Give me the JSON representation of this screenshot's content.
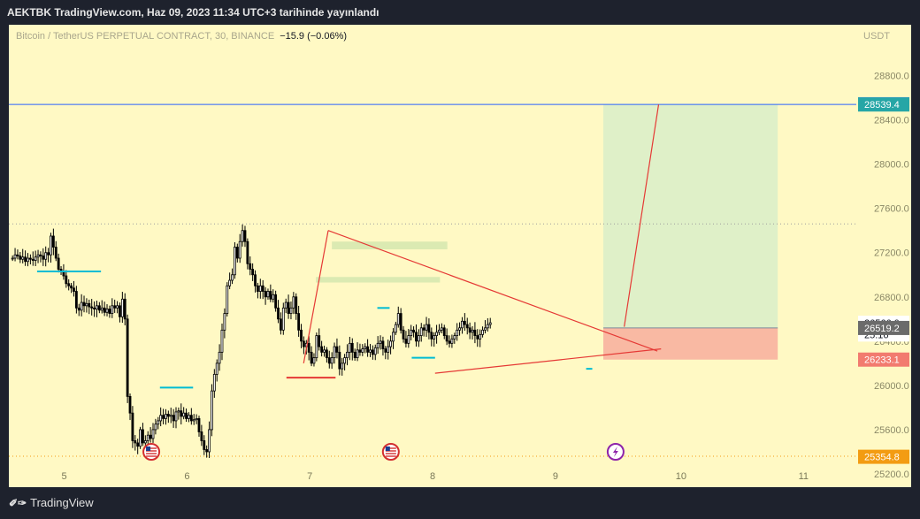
{
  "header": {
    "publish_note": "AEKTBK TradingView.com, Haz 09, 2023 11:34 UTC+3 tarihinde yayınlandı"
  },
  "legend": {
    "symbol": "Bitcoin / TetherUS PERPETUAL CONTRACT, 30, BINANCE",
    "change": "−15.9 (−0.06%)",
    "currency": "USDT"
  },
  "footer": {
    "brand": "TradingView"
  },
  "colors": {
    "background": "#fff9c4",
    "profit_zone": "#dff0c8",
    "loss_zone": "#f9b9a3",
    "pattern_line": "#e53935"
  },
  "chart_data": {
    "type": "candlestick",
    "x_ticks": [
      "5",
      "6",
      "7",
      "8",
      "9",
      "10",
      "11"
    ],
    "y_ticks": [
      25200.0,
      25600.0,
      26000.0,
      26400.0,
      26800.0,
      27200.0,
      27600.0,
      28000.0,
      28400.0,
      28800.0
    ],
    "y_tick_labels": [
      "25200.0",
      "25600.0",
      "26000.0",
      "26400.0",
      "26800.0",
      "27200.0",
      "27600.0",
      "28000.0",
      "28400.0",
      "28800.0"
    ],
    "ylim": [
      25080,
      29260
    ],
    "x_range": [
      4.55,
      11.5
    ],
    "price_labels": [
      {
        "text": "28541.2",
        "value": 28541.2,
        "color": "#2962ff"
      },
      {
        "text": "28539.4",
        "value": 28539.4,
        "color": "#26a6a6"
      },
      {
        "text": "26566.0",
        "value": 26566.0,
        "color": "#ffffff"
      },
      {
        "text": "25:16",
        "value": 26460.0,
        "color": "#ffffff"
      },
      {
        "text": "26519.2",
        "value": 26519.2,
        "color": "#6b6b6b"
      },
      {
        "text": "26233.1",
        "value": 26233.1,
        "color": "#f27b6f"
      },
      {
        "text": "25354.8",
        "value": 25354.8,
        "color": "#f39c12"
      }
    ],
    "horizontal_levels": [
      {
        "value": 28539.4,
        "style": "solid",
        "color": "#2962ff"
      },
      {
        "value": 27460,
        "style": "dotted",
        "color": "#9e9e9e"
      },
      {
        "value": 25360,
        "style": "dotted",
        "color": "#f39c12"
      }
    ],
    "candles": {
      "start_day": 4.58,
      "step": 0.0208,
      "closes": [
        27150,
        27180,
        27170,
        27140,
        27160,
        27120,
        27150,
        27140,
        27130,
        27160,
        27180,
        27170,
        27140,
        27200,
        27180,
        27350,
        27250,
        27150,
        27050,
        27030,
        26990,
        26920,
        26900,
        26880,
        26850,
        26700,
        26680,
        26750,
        26720,
        26740,
        26710,
        26700,
        26690,
        26720,
        26680,
        26700,
        26660,
        26690,
        26650,
        26720,
        26700,
        26720,
        26620,
        26780,
        26600,
        25900,
        25750,
        25500,
        25480,
        25450,
        25600,
        25480,
        25500,
        25550,
        25520,
        25600,
        25650,
        25680,
        25730,
        25700,
        25740,
        25720,
        25730,
        25680,
        25760,
        25770,
        25720,
        25750,
        25700,
        25730,
        25680,
        25690,
        25700,
        25580,
        25500,
        25420,
        25400,
        25600,
        25950,
        26100,
        26200,
        26300,
        26500,
        26650,
        26900,
        26950,
        27000,
        27250,
        27150,
        27300,
        27400,
        27300,
        27100,
        27050,
        27000,
        26900,
        26850,
        26900,
        26850,
        26800,
        26850,
        26780,
        26820,
        26700,
        26600,
        26500,
        26700,
        26750,
        26650,
        26700,
        26800,
        26650,
        26500,
        26400,
        26350,
        26380,
        26300,
        26200,
        26250,
        26450,
        26350,
        26300,
        26320,
        26250,
        26200,
        26250,
        26350,
        26300,
        26150,
        26200,
        26250,
        26300,
        26380,
        26300,
        26250,
        26320,
        26300,
        26330,
        26350,
        26300,
        26320,
        26280,
        26340,
        26380,
        26400,
        26330,
        26300,
        26350,
        26400,
        26480,
        26550,
        26650,
        26500,
        26420,
        26380,
        26450,
        26500,
        26480,
        26400,
        26450,
        26520,
        26500,
        26550,
        26480,
        26420,
        26450,
        26480,
        26500,
        26520,
        26450,
        26400,
        26380,
        26420,
        26450,
        26500,
        26520,
        26580,
        26550,
        26520,
        26480,
        26500,
        26450,
        26420,
        26460,
        26500,
        26520,
        26550,
        26566
      ]
    },
    "annotations": {
      "triangle_upper": [
        [
          7.15,
          27400
        ],
        [
          9.83,
          26310
        ]
      ],
      "triangle_lower": [
        [
          8.02,
          26110
        ],
        [
          9.86,
          26330
        ]
      ],
      "impulse_line": [
        [
          6.95,
          26200
        ],
        [
          7.15,
          27400
        ]
      ],
      "projection_line": [
        [
          9.56,
          26530
        ],
        [
          9.84,
          28539.4
        ]
      ],
      "long_position": {
        "x_start": 9.39,
        "x_end": 10.81,
        "entry": 26519.2,
        "target": 28539.4,
        "stop": 26233.1
      },
      "supply_zones": [
        {
          "x_start": 7.18,
          "x_end": 8.12,
          "y_low": 27230,
          "y_high": 27300
        },
        {
          "x_start": 7.05,
          "x_end": 8.06,
          "y_low": 26930,
          "y_high": 26980
        }
      ],
      "cyan_levels": [
        {
          "x_start": 4.78,
          "x_end": 5.3,
          "value": 27030
        },
        {
          "x_start": 5.78,
          "x_end": 6.05,
          "value": 25980
        },
        {
          "x_start": 7.55,
          "x_end": 7.65,
          "value": 26700
        },
        {
          "x_start": 7.83,
          "x_end": 8.02,
          "value": 26250
        },
        {
          "x_start": 9.25,
          "x_end": 9.3,
          "value": 26150
        }
      ],
      "red_levels": [
        {
          "x_start": 6.81,
          "x_end": 7.21,
          "value": 26070
        }
      ],
      "event_markers": [
        {
          "x": 5.71,
          "type": "us-flag"
        },
        {
          "x": 7.66,
          "type": "us-flag"
        },
        {
          "x": 9.49,
          "type": "lightning"
        }
      ]
    }
  }
}
